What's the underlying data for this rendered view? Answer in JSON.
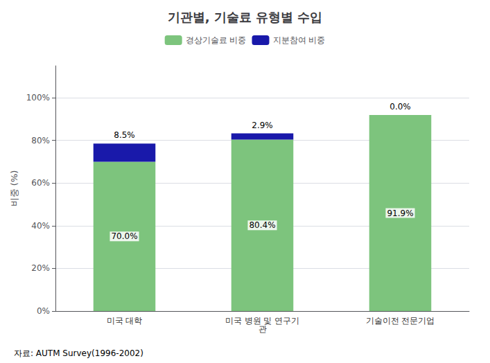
{
  "chart_data": {
    "type": "bar",
    "title": "기관별, 기술료 유형별 수입",
    "categories": [
      "미국 대학",
      "미국 병원 및 연구기\n관",
      "기술이전 전문기업"
    ],
    "series": [
      {
        "name": "경상기술료 비중",
        "color": "#7DC47D",
        "values": [
          70.0,
          80.4,
          91.9
        ],
        "value_labels": [
          "70.0%",
          "80.4%",
          "91.9%"
        ]
      },
      {
        "name": "지분참여 비중",
        "color": "#1919AA",
        "values": [
          8.5,
          2.9,
          0.0
        ],
        "value_labels": [
          "8.5%",
          "2.9%",
          "0.0%"
        ]
      }
    ],
    "stacked": true,
    "data_labels": true,
    "ylabel": "비중 (%)",
    "ylim": [
      0,
      115
    ],
    "yticks": [
      {
        "value": 0,
        "label": "0%"
      },
      {
        "value": 20,
        "label": "20%"
      },
      {
        "value": 40,
        "label": "40%"
      },
      {
        "value": 60,
        "label": "60%"
      },
      {
        "value": 80,
        "label": "80%"
      },
      {
        "value": 100,
        "label": "100%"
      }
    ],
    "grid": true,
    "legend": "upper center",
    "annotations": [
      "자료: AUTM Survey(1996-2002)"
    ]
  }
}
